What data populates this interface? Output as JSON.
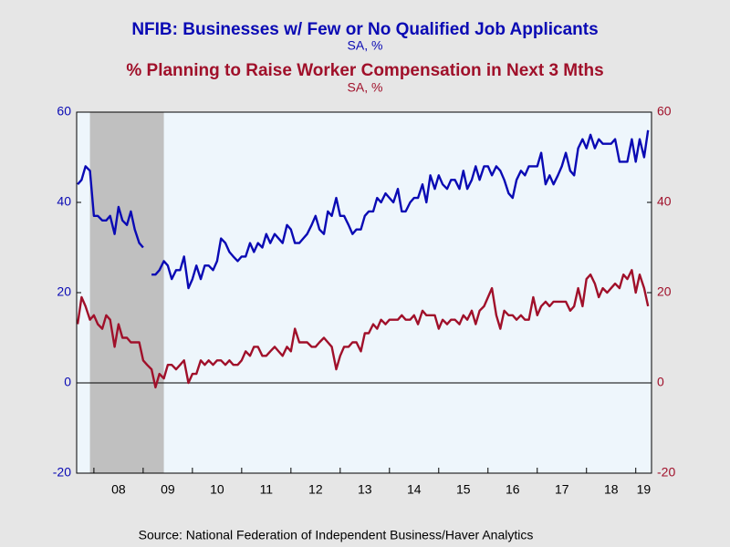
{
  "chart_data": {
    "type": "line",
    "title": "NFIB: Businesses w/ Few or No Qualified Job Applicants",
    "subtitle": "SA, %",
    "title2": "% Planning to Raise Worker Compensation in Next 3 Mths",
    "subtitle2": "SA, %",
    "source": "Source:  National Federation of Independent Business/Haver Analytics",
    "xlim": [
      2007.65,
      2019.32
    ],
    "xticks": [
      {
        "value": 2008,
        "label": "08"
      },
      {
        "value": 2009,
        "label": "09"
      },
      {
        "value": 2010,
        "label": "10"
      },
      {
        "value": 2011,
        "label": "11"
      },
      {
        "value": 2012,
        "label": "12"
      },
      {
        "value": 2013,
        "label": "13"
      },
      {
        "value": 2014,
        "label": "14"
      },
      {
        "value": 2015,
        "label": "15"
      },
      {
        "value": 2016,
        "label": "16"
      },
      {
        "value": 2017,
        "label": "17"
      },
      {
        "value": 2018,
        "label": "18"
      },
      {
        "value": 2019,
        "label": "19"
      }
    ],
    "ylim": [
      -20,
      60
    ],
    "yticks": [
      -20,
      0,
      20,
      40,
      60
    ],
    "y2lim": [
      -20,
      60
    ],
    "y2ticks": [
      -20,
      0,
      20,
      40,
      60
    ],
    "zero_line": true,
    "recession": [
      2007.92,
      2009.42
    ],
    "recession_color": "#c0c0c0",
    "plot_background": "#eef6fc",
    "x": [
      2007.67,
      2007.75,
      2007.83,
      2007.92,
      2008,
      2008.08,
      2008.17,
      2008.25,
      2008.33,
      2008.42,
      2008.5,
      2008.58,
      2008.67,
      2008.75,
      2008.83,
      2008.92,
      2009,
      2009.08,
      2009.17,
      2009.25,
      2009.33,
      2009.42,
      2009.5,
      2009.58,
      2009.67,
      2009.75,
      2009.83,
      2009.92,
      2010,
      2010.08,
      2010.17,
      2010.25,
      2010.33,
      2010.42,
      2010.5,
      2010.58,
      2010.67,
      2010.75,
      2010.83,
      2010.92,
      2011,
      2011.08,
      2011.17,
      2011.25,
      2011.33,
      2011.42,
      2011.5,
      2011.58,
      2011.67,
      2011.75,
      2011.83,
      2011.92,
      2012,
      2012.08,
      2012.17,
      2012.25,
      2012.33,
      2012.42,
      2012.5,
      2012.58,
      2012.67,
      2012.75,
      2012.83,
      2012.92,
      2013,
      2013.08,
      2013.17,
      2013.25,
      2013.33,
      2013.42,
      2013.5,
      2013.58,
      2013.67,
      2013.75,
      2013.83,
      2013.92,
      2014,
      2014.08,
      2014.17,
      2014.25,
      2014.33,
      2014.42,
      2014.5,
      2014.58,
      2014.67,
      2014.75,
      2014.83,
      2014.92,
      2015,
      2015.08,
      2015.17,
      2015.25,
      2015.33,
      2015.42,
      2015.5,
      2015.58,
      2015.67,
      2015.75,
      2015.83,
      2015.92,
      2016,
      2016.08,
      2016.17,
      2016.25,
      2016.33,
      2016.42,
      2016.5,
      2016.58,
      2016.67,
      2016.75,
      2016.83,
      2016.92,
      2017,
      2017.08,
      2017.17,
      2017.25,
      2017.33,
      2017.42,
      2017.5,
      2017.58,
      2017.67,
      2017.75,
      2017.83,
      2017.92,
      2018,
      2018.08,
      2018.17,
      2018.25,
      2018.33,
      2018.42,
      2018.5,
      2018.58,
      2018.67,
      2018.75,
      2018.83,
      2018.92,
      2019,
      2019.08,
      2019.17,
      2019.25
    ],
    "series": [
      {
        "name": "NFIB: Businesses w/ Few or No Qualified Job Applicants",
        "color": "#0a0ab4",
        "axis": "y",
        "values": [
          44,
          45,
          48,
          47,
          37,
          37,
          36,
          36,
          37,
          33,
          39,
          36,
          35,
          38,
          34,
          31,
          30,
          null,
          24,
          24,
          25,
          27,
          26,
          23,
          25,
          25,
          28,
          21,
          23,
          26,
          23,
          26,
          26,
          25,
          27,
          32,
          31,
          29,
          28,
          27,
          28,
          28,
          31,
          29,
          31,
          30,
          33,
          31,
          33,
          32,
          31,
          35,
          34,
          31,
          31,
          32,
          33,
          35,
          37,
          34,
          33,
          38,
          37,
          41,
          37,
          37,
          35,
          33,
          34,
          34,
          37,
          38,
          38,
          41,
          40,
          42,
          41,
          40,
          43,
          38,
          38,
          40,
          41,
          41,
          44,
          40,
          46,
          43,
          46,
          44,
          43,
          45,
          45,
          43,
          47,
          43,
          45,
          48,
          45,
          48,
          48,
          46,
          48,
          47,
          45,
          42,
          41,
          45,
          47,
          46,
          48,
          48,
          48,
          51,
          44,
          46,
          44,
          46,
          48,
          51,
          47,
          46,
          52,
          54,
          52,
          55,
          52,
          54,
          53,
          53,
          53,
          54,
          49,
          49,
          49,
          54,
          49,
          54,
          50,
          56
        ]
      },
      {
        "name": "% Planning to Raise Worker Compensation in Next 3 Mths",
        "color": "#a0102a",
        "axis": "y2",
        "values": [
          13,
          19,
          17,
          14,
          15,
          13,
          12,
          15,
          14,
          8,
          13,
          10,
          10,
          9,
          9,
          9,
          5,
          4,
          3,
          -1,
          2,
          1,
          4,
          4,
          3,
          4,
          5,
          0,
          2,
          2,
          5,
          4,
          5,
          4,
          5,
          5,
          4,
          5,
          4,
          4,
          5,
          7,
          6,
          8,
          8,
          6,
          6,
          7,
          8,
          7,
          6,
          8,
          7,
          12,
          9,
          9,
          9,
          8,
          8,
          9,
          10,
          9,
          8,
          3,
          6,
          8,
          8,
          9,
          9,
          7,
          11,
          11,
          13,
          12,
          14,
          13,
          14,
          14,
          14,
          15,
          14,
          14,
          15,
          13,
          16,
          15,
          15,
          15,
          12,
          14,
          13,
          14,
          14,
          13,
          15,
          14,
          16,
          13,
          16,
          17,
          19,
          21,
          15,
          12,
          16,
          15,
          15,
          14,
          15,
          14,
          14,
          19,
          15,
          17,
          18,
          17,
          18,
          18,
          18,
          18,
          16,
          17,
          21,
          17,
          23,
          24,
          22,
          19,
          21,
          20,
          21,
          22,
          21,
          24,
          23,
          25,
          20,
          24,
          21,
          17
        ]
      }
    ]
  }
}
